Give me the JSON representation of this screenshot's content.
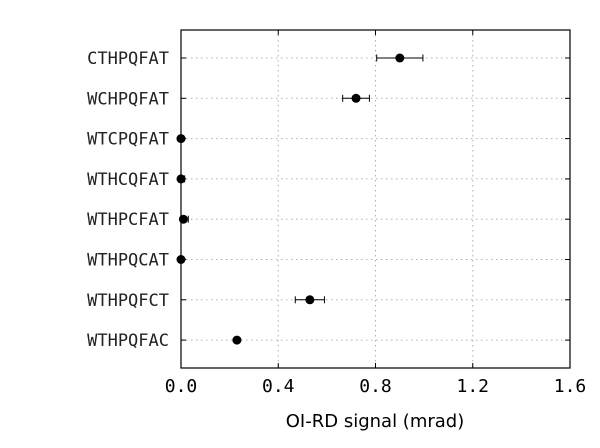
{
  "chart_data": {
    "type": "scatter",
    "orientation": "horizontal",
    "xlabel": "OI-RD signal (mrad)",
    "ylabel": "",
    "title": "",
    "xlim": [
      0.0,
      1.6
    ],
    "xticks": [
      0.0,
      0.4,
      0.8,
      1.2,
      1.6
    ],
    "xtick_labels": [
      "0.0",
      "0.4",
      "0.8",
      "1.2",
      "1.6"
    ],
    "grid": true,
    "categories": [
      "CTHPQFAT",
      "WCHPQFAT",
      "WTCPQFAT",
      "WTHCQFAT",
      "WTHPCFAT",
      "WTHPQCAT",
      "WTHPQFCT",
      "WTHPQFAC"
    ],
    "values": [
      0.9,
      0.72,
      0.0,
      0.0,
      0.01,
      0.0,
      0.53,
      0.23
    ],
    "errors": [
      0.095,
      0.055,
      0.01,
      0.015,
      0.02,
      0.01,
      0.06,
      0.0
    ],
    "marker_color": "#000000"
  }
}
